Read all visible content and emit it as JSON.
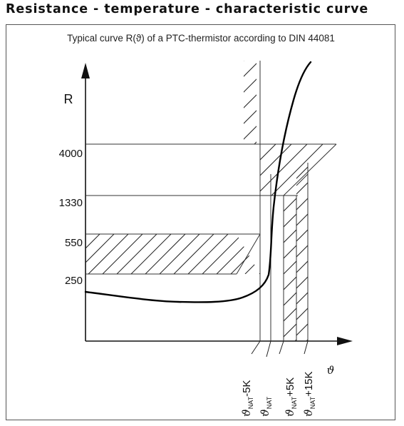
{
  "page": {
    "heading": "Resistance - temperature - characteristic curve"
  },
  "chart_data": {
    "type": "line",
    "title": "Typical curve R(ϑ) of a PTC-thermistor according to DIN 44081",
    "xlabel": "ϑ",
    "ylabel": "R",
    "y_ticks": [
      "250",
      "550",
      "1330",
      "4000"
    ],
    "x_ticks": [
      {
        "base": "ϑ",
        "sub": "NAT",
        "suffix": "-5K"
      },
      {
        "base": "ϑ",
        "sub": "NAT",
        "suffix": ""
      },
      {
        "base": "ϑ",
        "sub": "NAT",
        "suffix": "+5K"
      },
      {
        "base": "ϑ",
        "sub": "NAT",
        "suffix": "+15K"
      }
    ],
    "x_tick_values_K": [
      -5,
      0,
      5,
      15
    ],
    "series": [
      {
        "points": [
          [
            -11.0,
            190
          ],
          [
            -9.5,
            180
          ],
          [
            -8.0,
            172
          ],
          [
            -6.0,
            168
          ],
          [
            -4.0,
            175
          ],
          [
            -2.5,
            188
          ],
          [
            -1.0,
            210
          ],
          [
            -0.3,
            250
          ],
          [
            0.0,
            400
          ],
          [
            0.3,
            900
          ],
          [
            0.8,
            1600
          ],
          [
            1.5,
            2600
          ],
          [
            2.5,
            4000
          ],
          [
            4.0,
            6500
          ],
          [
            6.0,
            9000
          ]
        ]
      }
    ],
    "tolerance_regions": [
      {
        "description": "lower-left hatched band",
        "x_max_K": -5,
        "r_min": 250,
        "r_max": 550
      },
      {
        "description": "upper hatched band",
        "x_min_K": -5,
        "r_min": 4000
      },
      {
        "description": "right hatched band",
        "x_min_K": 5,
        "x_max_K": 15,
        "r_max": 1330
      }
    ],
    "grid": false,
    "axis_scale": "nonlinear"
  }
}
